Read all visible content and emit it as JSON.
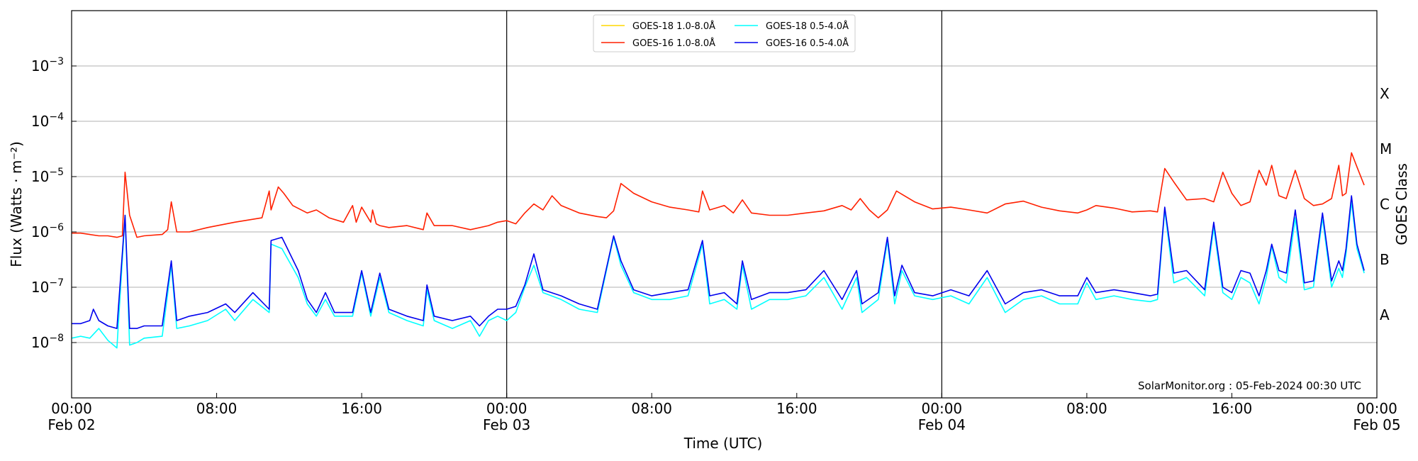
{
  "chart_data": {
    "type": "line",
    "title": "",
    "xlabel": "Time (UTC)",
    "ylabel": "Flux (Watts · m⁻²)",
    "y2label": "GOES Class",
    "yscale": "log",
    "ylim": [
      1e-09,
      0.01
    ],
    "xlim_hours": [
      0,
      72
    ],
    "x_unit": "hours since Feb 02 00:00 UTC",
    "grid": "horizontal",
    "legend_position": "top-center",
    "y_ticks": [
      {
        "value": 1e-08,
        "base": "10",
        "exp": "−8"
      },
      {
        "value": 1e-07,
        "base": "10",
        "exp": "−7"
      },
      {
        "value": 1e-06,
        "base": "10",
        "exp": "−6"
      },
      {
        "value": 1e-05,
        "base": "10",
        "exp": "−5"
      },
      {
        "value": 0.0001,
        "base": "10",
        "exp": "−4"
      },
      {
        "value": 0.001,
        "base": "10",
        "exp": "−3"
      }
    ],
    "x_ticks": [
      {
        "hour": 0,
        "time": "00:00",
        "date": "Feb 02"
      },
      {
        "hour": 8,
        "time": "08:00",
        "date": ""
      },
      {
        "hour": 16,
        "time": "16:00",
        "date": ""
      },
      {
        "hour": 24,
        "time": "00:00",
        "date": "Feb 03"
      },
      {
        "hour": 32,
        "time": "08:00",
        "date": ""
      },
      {
        "hour": 40,
        "time": "16:00",
        "date": ""
      },
      {
        "hour": 48,
        "time": "00:00",
        "date": "Feb 04"
      },
      {
        "hour": 56,
        "time": "08:00",
        "date": ""
      },
      {
        "hour": 64,
        "time": "16:00",
        "date": ""
      },
      {
        "hour": 72,
        "time": "00:00",
        "date": "Feb 05"
      }
    ],
    "day_boundaries_hours": [
      24,
      48
    ],
    "goes_classes": [
      {
        "label": "A",
        "flux": 1e-08
      },
      {
        "label": "B",
        "flux": 1e-07
      },
      {
        "label": "C",
        "flux": 1e-06
      },
      {
        "label": "M",
        "flux": 1e-05
      },
      {
        "label": "X",
        "flux": 0.0001
      }
    ],
    "annotation": "SolarMonitor.org : 05-Feb-2024 00:30 UTC",
    "series": [
      {
        "name": "GOES-18 1.0-8.0Å",
        "color": "#ffd700",
        "x": [],
        "y": []
      },
      {
        "name": "GOES-16 1.0-8.0Å",
        "color": "#ff2000",
        "x": [
          0,
          0.5,
          1.0,
          1.5,
          2.0,
          2.5,
          2.8,
          2.95,
          3.2,
          3.6,
          4.0,
          5.0,
          5.3,
          5.5,
          5.8,
          6.5,
          7.5,
          9.0,
          10.5,
          10.9,
          11.0,
          11.4,
          11.7,
          12.2,
          13.0,
          13.5,
          14.2,
          15.0,
          15.5,
          15.7,
          16.0,
          16.5,
          16.6,
          16.8,
          17.0,
          17.5,
          18.5,
          19.4,
          19.6,
          20.0,
          21.0,
          22.0,
          23.0,
          23.5,
          24.0,
          24.5,
          25.0,
          25.5,
          26.0,
          26.5,
          27.0,
          28.0,
          29.0,
          29.5,
          29.9,
          30.3,
          31.0,
          32.0,
          33.0,
          34.0,
          34.6,
          34.8,
          35.2,
          36.0,
          36.5,
          37.0,
          37.5,
          38.5,
          39.5,
          40.5,
          41.5,
          42.5,
          43.0,
          43.5,
          44.0,
          44.5,
          45.0,
          45.5,
          46.5,
          47.5,
          48.5,
          49.5,
          50.5,
          51.5,
          52.5,
          53.5,
          54.5,
          55.5,
          56.0,
          56.5,
          57.5,
          58.5,
          59.5,
          59.9,
          60.3,
          60.8,
          61.5,
          62.5,
          63.0,
          63.5,
          64.0,
          64.5,
          65.0,
          65.5,
          65.9,
          66.2,
          66.6,
          67.0,
          67.5,
          68.0,
          68.5,
          69.0,
          69.5,
          69.9,
          70.1,
          70.3,
          70.6,
          70.9,
          71.3
        ],
        "y": [
          9.5e-07,
          9.5e-07,
          9e-07,
          8.5e-07,
          8.5e-07,
          8e-07,
          8.5e-07,
          1.2e-05,
          2e-06,
          8e-07,
          8.5e-07,
          9e-07,
          1.1e-06,
          3.5e-06,
          1e-06,
          1e-06,
          1.2e-06,
          1.5e-06,
          1.8e-06,
          5.5e-06,
          2.5e-06,
          6.5e-06,
          5e-06,
          3e-06,
          2.2e-06,
          2.5e-06,
          1.8e-06,
          1.5e-06,
          3e-06,
          1.5e-06,
          2.8e-06,
          1.5e-06,
          2.5e-06,
          1.4e-06,
          1.3e-06,
          1.2e-06,
          1.3e-06,
          1.1e-06,
          2.2e-06,
          1.3e-06,
          1.3e-06,
          1.1e-06,
          1.3e-06,
          1.5e-06,
          1.6e-06,
          1.4e-06,
          2.2e-06,
          3.2e-06,
          2.5e-06,
          4.5e-06,
          3e-06,
          2.2e-06,
          1.9e-06,
          1.8e-06,
          2.4e-06,
          7.5e-06,
          5e-06,
          3.5e-06,
          2.8e-06,
          2.5e-06,
          2.3e-06,
          5.5e-06,
          2.5e-06,
          3e-06,
          2.2e-06,
          3.8e-06,
          2.2e-06,
          2e-06,
          2e-06,
          2.2e-06,
          2.4e-06,
          3e-06,
          2.5e-06,
          4e-06,
          2.5e-06,
          1.8e-06,
          2.5e-06,
          5.5e-06,
          3.5e-06,
          2.6e-06,
          2.8e-06,
          2.5e-06,
          2.2e-06,
          3.2e-06,
          3.6e-06,
          2.8e-06,
          2.4e-06,
          2.2e-06,
          2.5e-06,
          3e-06,
          2.7e-06,
          2.3e-06,
          2.4e-06,
          2.3e-06,
          1.4e-05,
          8e-06,
          3.8e-06,
          4e-06,
          3.5e-06,
          1.2e-05,
          5e-06,
          3e-06,
          3.5e-06,
          1.3e-05,
          7e-06,
          1.6e-05,
          4.5e-06,
          4e-06,
          1.3e-05,
          4e-06,
          3e-06,
          3.2e-06,
          4e-06,
          1.6e-05,
          4.5e-06,
          5e-06,
          2.7e-05,
          1.5e-05,
          7e-06
        ]
      },
      {
        "name": "GOES-18 0.5-4.0Å",
        "color": "#00ffff",
        "x": [
          0,
          0.5,
          1.0,
          1.5,
          2.0,
          2.5,
          2.95,
          3.2,
          3.6,
          4.0,
          5.0,
          5.5,
          5.8,
          6.5,
          7.5,
          8.5,
          9.0,
          10.0,
          10.9,
          11.0,
          11.6,
          12.5,
          13.0,
          13.5,
          14.0,
          14.5,
          15.5,
          16.0,
          16.5,
          17.0,
          17.5,
          18.5,
          19.4,
          19.6,
          20.0,
          21.0,
          22.0,
          22.5,
          23.0,
          23.5,
          24.0,
          24.5,
          25.0,
          25.5,
          26.0,
          27.0,
          28.0,
          29.0,
          29.9,
          30.3,
          31.0,
          32.0,
          33.0,
          34.0,
          34.8,
          35.2,
          36.0,
          36.7,
          37.0,
          37.5,
          38.5,
          39.5,
          40.5,
          41.5,
          42.5,
          43.3,
          43.6,
          44.5,
          45.0,
          45.4,
          45.8,
          46.5,
          47.5,
          48.5,
          49.5,
          50.5,
          51.5,
          52.5,
          53.5,
          54.5,
          55.5,
          56.0,
          56.5,
          57.5,
          58.5,
          59.5,
          59.9,
          60.3,
          60.8,
          61.5,
          62.5,
          63.0,
          63.5,
          64.0,
          64.5,
          65.0,
          65.5,
          65.9,
          66.2,
          66.6,
          67.0,
          67.5,
          68.0,
          68.5,
          69.0,
          69.5,
          69.9,
          70.1,
          70.3,
          70.6,
          70.9,
          71.3
        ],
        "y": [
          1.2e-08,
          1.3e-08,
          1.2e-08,
          1.8e-08,
          1.1e-08,
          8e-09,
          2e-06,
          9e-09,
          1e-08,
          1.2e-08,
          1.3e-08,
          2.5e-07,
          1.8e-08,
          2e-08,
          2.5e-08,
          4e-08,
          2.5e-08,
          6e-08,
          3.5e-08,
          6e-07,
          5e-07,
          1.5e-07,
          5e-08,
          3e-08,
          6e-08,
          3e-08,
          3e-08,
          1.8e-07,
          3e-08,
          1.5e-07,
          3.5e-08,
          2.5e-08,
          2e-08,
          9e-08,
          2.5e-08,
          1.8e-08,
          2.5e-08,
          1.3e-08,
          2.5e-08,
          3e-08,
          2.5e-08,
          3.5e-08,
          1e-07,
          2.5e-07,
          8e-08,
          6e-08,
          4e-08,
          3.5e-08,
          8e-07,
          2.5e-07,
          8e-08,
          6e-08,
          6e-08,
          7e-08,
          6e-07,
          5e-08,
          6e-08,
          4e-08,
          2.5e-07,
          4e-08,
          6e-08,
          6e-08,
          7e-08,
          1.5e-07,
          4e-08,
          1.5e-07,
          3.5e-08,
          6e-08,
          7e-07,
          5e-08,
          2e-07,
          7e-08,
          6e-08,
          7e-08,
          5e-08,
          1.5e-07,
          3.5e-08,
          6e-08,
          7e-08,
          5e-08,
          5e-08,
          1.2e-07,
          6e-08,
          7e-08,
          6e-08,
          5.5e-08,
          6e-08,
          2.5e-06,
          1.2e-07,
          1.5e-07,
          7e-08,
          1.2e-06,
          8e-08,
          6e-08,
          1.5e-07,
          1.2e-07,
          5e-08,
          1.5e-07,
          5.5e-07,
          1.5e-07,
          1.2e-07,
          1.8e-06,
          9e-08,
          1e-07,
          1.8e-06,
          1e-07,
          2.2e-07,
          1.5e-07,
          4e-07,
          3.5e-06,
          5e-07,
          1.8e-07
        ]
      },
      {
        "name": "GOES-16 0.5-4.0Å",
        "color": "#0000ee",
        "x": [
          0,
          0.5,
          1.0,
          1.2,
          1.5,
          2.0,
          2.5,
          2.95,
          3.2,
          3.6,
          4.0,
          5.0,
          5.5,
          5.8,
          6.5,
          7.5,
          8.5,
          9.0,
          10.0,
          10.9,
          11.0,
          11.6,
          12.5,
          13.0,
          13.5,
          14.0,
          14.5,
          15.5,
          16.0,
          16.5,
          17.0,
          17.5,
          18.5,
          19.4,
          19.6,
          20.0,
          21.0,
          22.0,
          22.5,
          23.0,
          23.5,
          24.0,
          24.5,
          25.0,
          25.5,
          26.0,
          27.0,
          28.0,
          29.0,
          29.9,
          30.3,
          31.0,
          32.0,
          33.0,
          34.0,
          34.8,
          35.2,
          36.0,
          36.7,
          37.0,
          37.5,
          38.5,
          39.5,
          40.5,
          41.5,
          42.5,
          43.3,
          43.6,
          44.5,
          45.0,
          45.4,
          45.8,
          46.5,
          47.5,
          48.5,
          49.5,
          50.5,
          51.5,
          52.5,
          53.5,
          54.5,
          55.5,
          56.0,
          56.5,
          57.5,
          58.5,
          59.5,
          59.9,
          60.3,
          60.8,
          61.5,
          62.5,
          63.0,
          63.5,
          64.0,
          64.5,
          65.0,
          65.5,
          65.9,
          66.2,
          66.6,
          67.0,
          67.5,
          68.0,
          68.5,
          69.0,
          69.5,
          69.9,
          70.1,
          70.3,
          70.6,
          70.9,
          71.3
        ],
        "y": [
          2.2e-08,
          2.2e-08,
          2.5e-08,
          4e-08,
          2.5e-08,
          2e-08,
          1.8e-08,
          2e-06,
          1.8e-08,
          1.8e-08,
          2e-08,
          2e-08,
          3e-07,
          2.5e-08,
          3e-08,
          3.5e-08,
          5e-08,
          3.5e-08,
          8e-08,
          4e-08,
          7e-07,
          8e-07,
          2e-07,
          6e-08,
          3.5e-08,
          8e-08,
          3.5e-08,
          3.5e-08,
          2e-07,
          3.5e-08,
          1.8e-07,
          4e-08,
          3e-08,
          2.5e-08,
          1.1e-07,
          3e-08,
          2.5e-08,
          3e-08,
          2e-08,
          3e-08,
          4e-08,
          4e-08,
          4.5e-08,
          1.1e-07,
          4e-07,
          9e-08,
          7e-08,
          5e-08,
          4e-08,
          8.5e-07,
          3e-07,
          9e-08,
          7e-08,
          8e-08,
          9e-08,
          7e-07,
          7e-08,
          8e-08,
          5e-08,
          3e-07,
          6e-08,
          8e-08,
          8e-08,
          9e-08,
          2e-07,
          6e-08,
          2e-07,
          5e-08,
          8e-08,
          8e-07,
          7e-08,
          2.5e-07,
          8e-08,
          7e-08,
          9e-08,
          7e-08,
          2e-07,
          5e-08,
          8e-08,
          9e-08,
          7e-08,
          7e-08,
          1.5e-07,
          8e-08,
          9e-08,
          8e-08,
          7e-08,
          7.5e-08,
          2.8e-06,
          1.8e-07,
          2e-07,
          9e-08,
          1.5e-06,
          1e-07,
          8e-08,
          2e-07,
          1.8e-07,
          7e-08,
          2e-07,
          6e-07,
          2e-07,
          1.8e-07,
          2.5e-06,
          1.2e-07,
          1.3e-07,
          2.2e-06,
          1.3e-07,
          3e-07,
          2e-07,
          5e-07,
          4.5e-06,
          6e-07,
          2e-07
        ]
      }
    ]
  }
}
